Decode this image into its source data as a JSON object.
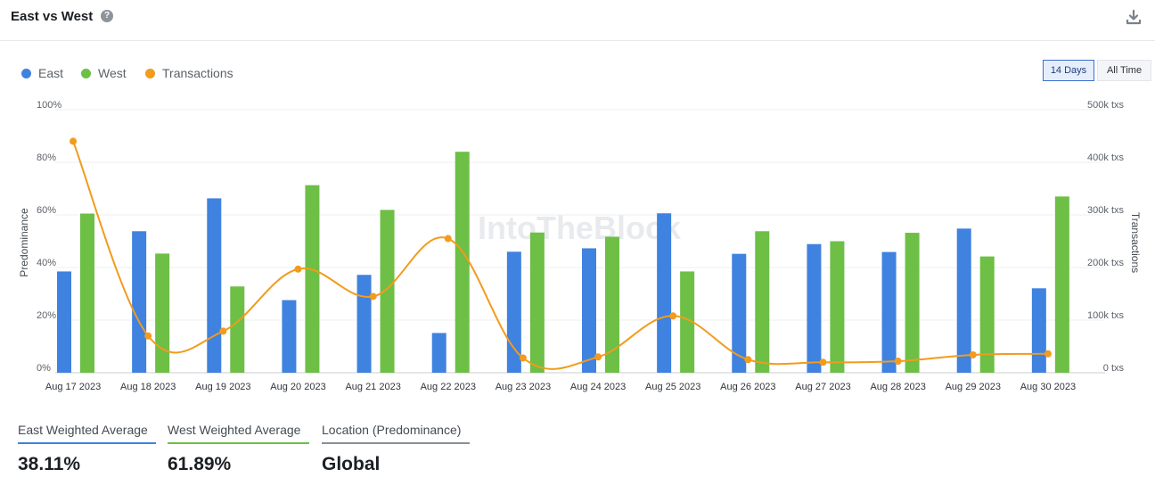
{
  "header": {
    "title": "East vs West",
    "help_icon": "question-circle-icon",
    "download_icon": "download-icon"
  },
  "legend": [
    {
      "label": "East",
      "color": "#3f82e0"
    },
    {
      "label": "West",
      "color": "#6dbf45"
    },
    {
      "label": "Transactions",
      "color": "#f29b1d"
    }
  ],
  "range_buttons": [
    {
      "label": "14 Days",
      "active": true
    },
    {
      "label": "All Time",
      "active": false
    }
  ],
  "watermark": "IntoTheBlock",
  "chart_data": {
    "type": "bar",
    "categories": [
      "Aug 17 2023",
      "Aug 18 2023",
      "Aug 19 2023",
      "Aug 20 2023",
      "Aug 21 2023",
      "Aug 22 2023",
      "Aug 23 2023",
      "Aug 24 2023",
      "Aug 25 2023",
      "Aug 26 2023",
      "Aug 27 2023",
      "Aug 28 2023",
      "Aug 29 2023",
      "Aug 30 2023"
    ],
    "series": [
      {
        "name": "East",
        "type": "bar",
        "axis": "left",
        "color": "#3f82e0",
        "values": [
          38.5,
          53.8,
          66.3,
          27.6,
          37.2,
          15.1,
          46.0,
          47.3,
          60.6,
          45.2,
          48.9,
          45.9,
          54.8,
          32.1
        ]
      },
      {
        "name": "West",
        "type": "bar",
        "axis": "left",
        "color": "#6dbf45",
        "values": [
          60.5,
          45.3,
          32.8,
          71.3,
          61.9,
          84.0,
          53.3,
          51.7,
          38.5,
          53.8,
          50.0,
          53.2,
          44.2,
          67.0
        ]
      },
      {
        "name": "Transactions",
        "type": "line",
        "axis": "right",
        "color": "#f29b1d",
        "values": [
          440000,
          70000,
          79000,
          197000,
          145000,
          255000,
          28000,
          30000,
          108000,
          25000,
          20000,
          22000,
          34000,
          36000
        ]
      }
    ],
    "y_left": {
      "label": "Predominance",
      "min": 0,
      "max": 100,
      "ticks": [
        "0%",
        "20%",
        "40%",
        "60%",
        "80%",
        "100%"
      ]
    },
    "y_right": {
      "label": "Transactions",
      "min": 0,
      "max": 500000,
      "ticks": [
        "0 txs",
        "100k txs",
        "200k txs",
        "300k txs",
        "400k txs",
        "500k txs"
      ]
    },
    "grid": true,
    "legend_position": "top-left"
  },
  "stats": [
    {
      "label": "East Weighted Average",
      "value": "38.11%",
      "color": "#3f82e0"
    },
    {
      "label": "West Weighted Average",
      "value": "61.89%",
      "color": "#6dbf45"
    },
    {
      "label": "Location (Predominance)",
      "value": "Global",
      "color": "#8a8f96"
    }
  ]
}
